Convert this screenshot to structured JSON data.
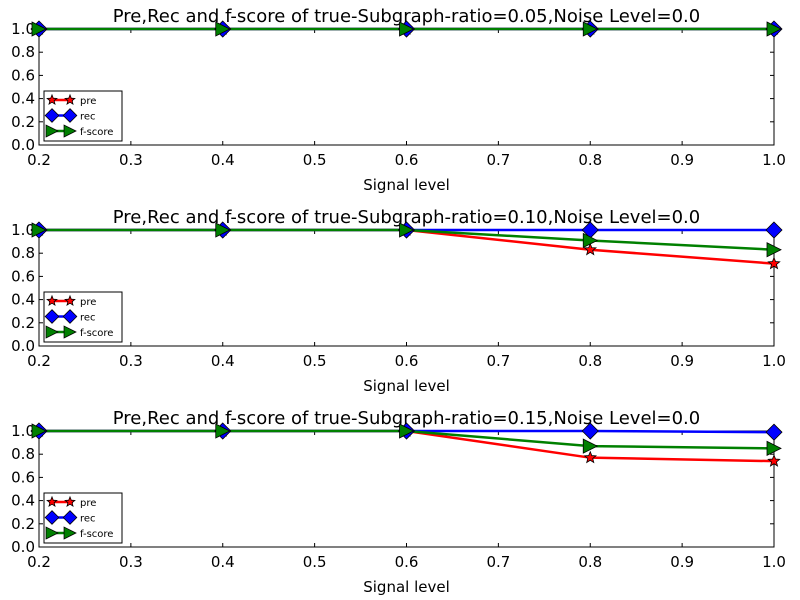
{
  "chart_data": [
    {
      "type": "line",
      "title": "Pre,Rec and f-score of true-Subgraph-ratio=0.05,Noise Level=0.0",
      "xlabel": "Signal level",
      "ylabel": "",
      "x": [
        0.2,
        0.4,
        0.6,
        0.8,
        1.0
      ],
      "xlim": [
        0.2,
        1.0
      ],
      "ylim": [
        0.0,
        1.0
      ],
      "xticks": [
        "0.2",
        "0.3",
        "0.4",
        "0.5",
        "0.6",
        "0.7",
        "0.8",
        "0.9",
        "1.0"
      ],
      "yticks": [
        "0.0",
        "0.2",
        "0.4",
        "0.6",
        "0.8",
        "1.0"
      ],
      "legend_position": "lower-left",
      "grid": false,
      "series": [
        {
          "name": "pre",
          "color": "#ff0000",
          "marker": "star",
          "values": [
            1.0,
            1.0,
            1.0,
            1.0,
            1.0
          ]
        },
        {
          "name": "rec",
          "color": "#0000ff",
          "marker": "diamond",
          "values": [
            1.0,
            1.0,
            1.0,
            1.0,
            1.0
          ]
        },
        {
          "name": "f-score",
          "color": "#008000",
          "marker": "triangle-right",
          "values": [
            1.0,
            1.0,
            1.0,
            1.0,
            1.0
          ]
        }
      ]
    },
    {
      "type": "line",
      "title": "Pre,Rec and f-score of true-Subgraph-ratio=0.10,Noise Level=0.0",
      "xlabel": "Signal level",
      "ylabel": "",
      "x": [
        0.2,
        0.4,
        0.6,
        0.8,
        1.0
      ],
      "xlim": [
        0.2,
        1.0
      ],
      "ylim": [
        0.0,
        1.0
      ],
      "xticks": [
        "0.2",
        "0.3",
        "0.4",
        "0.5",
        "0.6",
        "0.7",
        "0.8",
        "0.9",
        "1.0"
      ],
      "yticks": [
        "0.0",
        "0.2",
        "0.4",
        "0.6",
        "0.8",
        "1.0"
      ],
      "legend_position": "lower-left",
      "grid": false,
      "series": [
        {
          "name": "pre",
          "color": "#ff0000",
          "marker": "star",
          "values": [
            1.0,
            1.0,
            1.0,
            0.83,
            0.71
          ]
        },
        {
          "name": "rec",
          "color": "#0000ff",
          "marker": "diamond",
          "values": [
            1.0,
            1.0,
            1.0,
            1.0,
            1.0
          ]
        },
        {
          "name": "f-score",
          "color": "#008000",
          "marker": "triangle-right",
          "values": [
            1.0,
            1.0,
            1.0,
            0.91,
            0.83
          ]
        }
      ]
    },
    {
      "type": "line",
      "title": "Pre,Rec and f-score of true-Subgraph-ratio=0.15,Noise Level=0.0",
      "xlabel": "Signal level",
      "ylabel": "",
      "x": [
        0.2,
        0.4,
        0.6,
        0.8,
        1.0
      ],
      "xlim": [
        0.2,
        1.0
      ],
      "ylim": [
        0.0,
        1.0
      ],
      "xticks": [
        "0.2",
        "0.3",
        "0.4",
        "0.5",
        "0.6",
        "0.7",
        "0.8",
        "0.9",
        "1.0"
      ],
      "yticks": [
        "0.0",
        "0.2",
        "0.4",
        "0.6",
        "0.8",
        "1.0"
      ],
      "legend_position": "lower-left",
      "grid": false,
      "series": [
        {
          "name": "pre",
          "color": "#ff0000",
          "marker": "star",
          "values": [
            1.0,
            1.0,
            1.0,
            0.77,
            0.74
          ]
        },
        {
          "name": "rec",
          "color": "#0000ff",
          "marker": "diamond",
          "values": [
            1.0,
            1.0,
            1.0,
            1.0,
            0.99
          ]
        },
        {
          "name": "f-score",
          "color": "#008000",
          "marker": "triangle-right",
          "values": [
            1.0,
            1.0,
            1.0,
            0.87,
            0.85
          ]
        }
      ]
    }
  ]
}
